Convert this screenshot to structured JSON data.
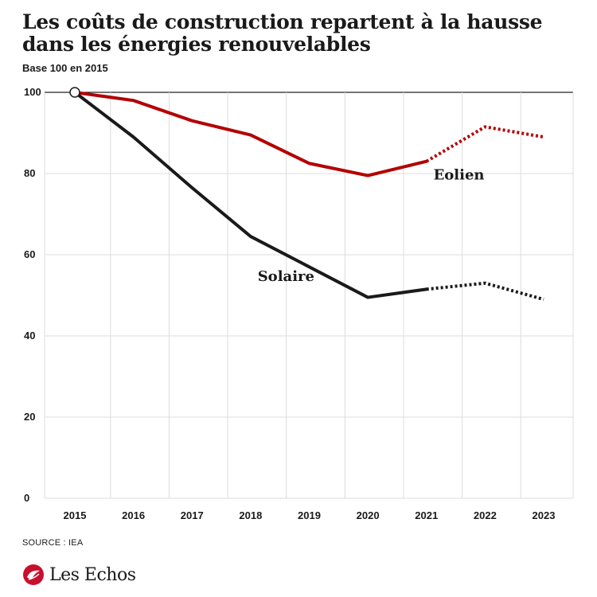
{
  "title": "Les coûts de construction repartent à la hausse dans les énergies renouvelables",
  "subtitle": "Base 100 en 2015",
  "source": "SOURCE : IEA",
  "brand": "Les Echos",
  "colors": {
    "eolien": "#b30000",
    "solaire": "#1a1a1a",
    "grid": "#dcdcdc",
    "axis": "#222222"
  },
  "chart_data": {
    "type": "line",
    "x": [
      "2015",
      "2016",
      "2017",
      "2018",
      "2019",
      "2020",
      "2021",
      "2022",
      "2023"
    ],
    "ylim": [
      0,
      100
    ],
    "yticks": [
      0,
      20,
      40,
      60,
      80,
      100
    ],
    "series": [
      {
        "name": "Eolien",
        "values": [
          100,
          98,
          93,
          89.5,
          82.5,
          79.5,
          83,
          91.5,
          89
        ],
        "projected_from": "2021",
        "color": "#b30000"
      },
      {
        "name": "Solaire",
        "values": [
          100,
          89,
          76.5,
          64.5,
          57,
          49.5,
          51.5,
          53,
          49
        ],
        "projected_from": "2021",
        "color": "#1a1a1a"
      }
    ],
    "grid": true
  }
}
